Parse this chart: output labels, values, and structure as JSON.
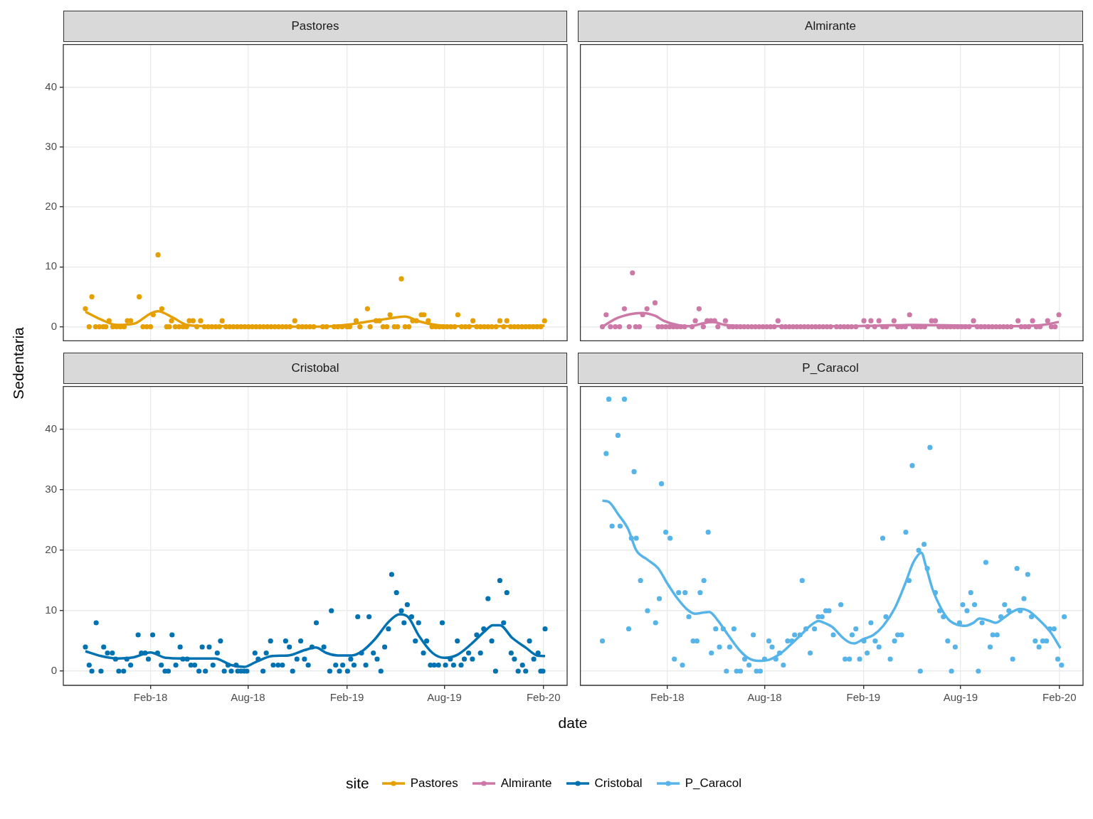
{
  "chart_data": [
    {
      "type": "scatter",
      "title": "Pastores",
      "ylabel": "Sedentaria",
      "legend": "bottom",
      "legend_title": "site",
      "grid": true,
      "tick_labels": "y",
      "xlim": [
        "2017-08-23",
        "2020-03-16"
      ],
      "xticks": [
        {
          "value": "2018-02-01",
          "label": null
        },
        {
          "value": "2018-08-01",
          "label": null
        },
        {
          "value": "2019-02-01",
          "label": null
        },
        {
          "value": "2019-08-01",
          "label": null
        },
        {
          "value": "2020-02-01",
          "label": null
        }
      ],
      "ylim": [
        -2.35,
        47.1
      ],
      "yticks": [
        0,
        10,
        20,
        30,
        40
      ],
      "series": [
        {
          "type": "scatter",
          "color": "#e69f00",
          "x": [
            "2017-10-03",
            "2017-10-10",
            "2017-10-15",
            "2017-10-22",
            "2017-10-29",
            "2017-11-05",
            "2017-11-10",
            "2017-11-16",
            "2017-11-23",
            "2017-11-30",
            "2017-12-07",
            "2017-12-14",
            "2017-12-20",
            "2017-12-26",
            "2018-01-11",
            "2018-01-18",
            "2018-01-25",
            "2018-02-01",
            "2018-02-06",
            "2018-02-15",
            "2018-02-22",
            "2018-03-03",
            "2018-03-08",
            "2018-03-12",
            "2018-03-19",
            "2018-03-26",
            "2018-04-02",
            "2018-04-09",
            "2018-04-14",
            "2018-04-21",
            "2018-04-28",
            "2018-05-05",
            "2018-05-12",
            "2018-05-19",
            "2018-05-26",
            "2018-06-02",
            "2018-06-09",
            "2018-06-14",
            "2018-06-21",
            "2018-06-28",
            "2018-07-05",
            "2018-07-12",
            "2018-07-19",
            "2018-07-26",
            "2018-08-02",
            "2018-08-09",
            "2018-08-16",
            "2018-08-23",
            "2018-08-30",
            "2018-09-06",
            "2018-09-13",
            "2018-09-20",
            "2018-09-27",
            "2018-10-04",
            "2018-10-11",
            "2018-10-18",
            "2018-10-27",
            "2018-11-03",
            "2018-11-10",
            "2018-11-17",
            "2018-11-24",
            "2018-12-01",
            "2018-12-18",
            "2018-12-25",
            "2019-01-08",
            "2019-01-15",
            "2019-01-23",
            "2019-02-01",
            "2019-02-06",
            "2019-02-18",
            "2019-02-25",
            "2019-03-11",
            "2019-03-16",
            "2019-03-27",
            "2019-04-02",
            "2019-04-09",
            "2019-04-16",
            "2019-04-22",
            "2019-04-30",
            "2019-05-06",
            "2019-05-13",
            "2019-05-20",
            "2019-05-27",
            "2019-06-03",
            "2019-06-10",
            "2019-06-19",
            "2019-06-24",
            "2019-07-02",
            "2019-07-09",
            "2019-07-16",
            "2019-07-23",
            "2019-07-30",
            "2019-08-06",
            "2019-08-13",
            "2019-08-20",
            "2019-08-26",
            "2019-09-02",
            "2019-09-09",
            "2019-09-16",
            "2019-09-23",
            "2019-09-30",
            "2019-10-07",
            "2019-10-14",
            "2019-10-21",
            "2019-10-28",
            "2019-11-05",
            "2019-11-12",
            "2019-11-19",
            "2019-11-25",
            "2019-12-02",
            "2019-12-09",
            "2019-12-16",
            "2019-12-23",
            "2019-12-30",
            "2020-01-06",
            "2020-01-13",
            "2020-01-20",
            "2020-01-27",
            "2020-02-03"
          ],
          "values": [
            3,
            0,
            5,
            0,
            0,
            0,
            0,
            1,
            0,
            0,
            0,
            0,
            1,
            1,
            5,
            0,
            0,
            0,
            2,
            12,
            3,
            0,
            0,
            1,
            0,
            0,
            0,
            0,
            1,
            1,
            0,
            1,
            0,
            0,
            0,
            0,
            0,
            1,
            0,
            0,
            0,
            0,
            0,
            0,
            0,
            0,
            0,
            0,
            0,
            0,
            0,
            0,
            0,
            0,
            0,
            0,
            1,
            0,
            0,
            0,
            0,
            0,
            0,
            0,
            0,
            0,
            0,
            0,
            0,
            1,
            0,
            3,
            0,
            1,
            1,
            0,
            0,
            2,
            0,
            0,
            8,
            0,
            0,
            1,
            1,
            2,
            2,
            1,
            0,
            0,
            0,
            0,
            0,
            0,
            0,
            2,
            0,
            0,
            0,
            1,
            0,
            0,
            0,
            0,
            0,
            0,
            1,
            0,
            1,
            0,
            0,
            0,
            0,
            0,
            0,
            0,
            0,
            0,
            1
          ]
        },
        {
          "type": "line",
          "name": "Pastores",
          "color": "#e69f00",
          "x": [
            "2017-10-03",
            "2017-11-01",
            "2017-12-01",
            "2018-01-01",
            "2018-02-01",
            "2018-02-15",
            "2018-03-15",
            "2018-04-10",
            "2018-05-15",
            "2018-07-01",
            "2018-09-01",
            "2018-11-01",
            "2018-12-15",
            "2019-01-15",
            "2019-02-15",
            "2019-03-15",
            "2019-04-15",
            "2019-05-20",
            "2019-06-15",
            "2019-07-15",
            "2019-08-15",
            "2019-10-01",
            "2019-12-01",
            "2020-02-03"
          ],
          "values": [
            2.5,
            1.2,
            0.3,
            0.5,
            2.2,
            2.6,
            1.5,
            0.3,
            0.1,
            0.1,
            0,
            0,
            0,
            0.2,
            0.5,
            0.9,
            1.3,
            1.7,
            0.9,
            0.3,
            0.1,
            0.1,
            0.1,
            0.2
          ]
        }
      ]
    },
    {
      "type": "scatter",
      "title": "Almirante",
      "legend": "bottom",
      "grid": true,
      "tick_labels": false,
      "xlim": [
        "2017-08-23",
        "2020-03-16"
      ],
      "xticks": [
        {
          "value": "2018-02-01",
          "label": null
        },
        {
          "value": "2018-08-01",
          "label": null
        },
        {
          "value": "2019-02-01",
          "label": null
        },
        {
          "value": "2019-08-01",
          "label": null
        },
        {
          "value": "2020-02-01",
          "label": null
        }
      ],
      "ylim": [
        -2.35,
        47.1
      ],
      "yticks": [
        0,
        10,
        20,
        30,
        40
      ],
      "series": [
        {
          "type": "scatter",
          "color": "#cc79a7",
          "x": [
            "2017-10-03",
            "2017-10-10",
            "2017-10-18",
            "2017-10-27",
            "2017-11-04",
            "2017-11-13",
            "2017-11-22",
            "2017-11-28",
            "2017-12-04",
            "2017-12-11",
            "2017-12-17",
            "2017-12-25",
            "2018-01-09",
            "2018-01-15",
            "2018-01-22",
            "2018-01-29",
            "2018-02-05",
            "2018-02-12",
            "2018-02-19",
            "2018-02-26",
            "2018-03-05",
            "2018-03-19",
            "2018-03-25",
            "2018-04-01",
            "2018-04-09",
            "2018-04-16",
            "2018-04-23",
            "2018-04-30",
            "2018-05-06",
            "2018-05-20",
            "2018-05-27",
            "2018-06-03",
            "2018-06-10",
            "2018-06-17",
            "2018-06-24",
            "2018-07-01",
            "2018-07-08",
            "2018-07-15",
            "2018-07-22",
            "2018-07-29",
            "2018-08-05",
            "2018-08-12",
            "2018-08-19",
            "2018-08-26",
            "2018-09-02",
            "2018-09-09",
            "2018-09-16",
            "2018-09-23",
            "2018-09-30",
            "2018-10-07",
            "2018-10-14",
            "2018-10-21",
            "2018-10-28",
            "2018-11-04",
            "2018-11-11",
            "2018-11-18",
            "2018-11-25",
            "2018-12-02",
            "2018-12-13",
            "2018-12-20",
            "2018-12-27",
            "2019-01-03",
            "2019-01-10",
            "2019-01-18",
            "2019-02-02",
            "2019-02-09",
            "2019-02-15",
            "2019-02-22",
            "2019-03-02",
            "2019-03-09",
            "2019-03-16",
            "2019-03-30",
            "2019-04-06",
            "2019-04-13",
            "2019-04-20",
            "2019-04-28",
            "2019-05-05",
            "2019-05-12",
            "2019-05-19",
            "2019-05-26",
            "2019-06-08",
            "2019-06-15",
            "2019-06-22",
            "2019-06-29",
            "2019-07-06",
            "2019-07-13",
            "2019-07-20",
            "2019-07-27",
            "2019-08-03",
            "2019-08-10",
            "2019-08-17",
            "2019-08-25",
            "2019-09-01",
            "2019-09-08",
            "2019-09-15",
            "2019-09-22",
            "2019-09-29",
            "2019-10-06",
            "2019-10-13",
            "2019-10-20",
            "2019-10-27",
            "2019-11-03",
            "2019-11-16",
            "2019-11-22",
            "2019-11-29",
            "2019-12-06",
            "2019-12-13",
            "2019-12-20",
            "2019-12-27",
            "2020-01-10",
            "2020-01-17",
            "2020-01-24",
            "2020-01-31"
          ],
          "values": [
            0,
            2,
            0,
            0,
            0,
            3,
            0,
            9,
            0,
            0,
            2,
            3,
            4,
            0,
            0,
            0,
            0,
            0,
            0,
            0,
            0,
            0,
            1,
            3,
            0,
            1,
            1,
            1,
            0,
            1,
            0,
            0,
            0,
            0,
            0,
            0,
            0,
            0,
            0,
            0,
            0,
            0,
            0,
            1,
            0,
            0,
            0,
            0,
            0,
            0,
            0,
            0,
            0,
            0,
            0,
            0,
            0,
            0,
            0,
            0,
            0,
            0,
            0,
            0,
            1,
            0,
            1,
            0,
            1,
            0,
            0,
            1,
            0,
            0,
            0,
            2,
            0,
            0,
            0,
            0,
            1,
            1,
            0,
            0,
            0,
            0,
            0,
            0,
            0,
            0,
            0,
            1,
            0,
            0,
            0,
            0,
            0,
            0,
            0,
            0,
            0,
            0,
            1,
            0,
            0,
            0,
            1,
            0,
            0,
            1,
            0,
            0,
            2
          ]
        },
        {
          "type": "line",
          "name": "Almirante",
          "color": "#cc79a7",
          "x": [
            "2017-10-03",
            "2017-11-01",
            "2017-12-15",
            "2018-01-10",
            "2018-01-25",
            "2018-02-25",
            "2018-03-15",
            "2018-04-10",
            "2018-04-25",
            "2018-05-20",
            "2018-07-01",
            "2018-10-01",
            "2019-01-01",
            "2019-03-01",
            "2019-05-01",
            "2019-08-01",
            "2019-11-01",
            "2020-01-01",
            "2020-01-31"
          ],
          "values": [
            0,
            1.5,
            2.3,
            1.8,
            1,
            0.2,
            0.1,
            0.6,
            0.8,
            0.3,
            0.1,
            0.1,
            0.1,
            0.2,
            0.3,
            0.2,
            0.1,
            0.3,
            0.8
          ]
        }
      ]
    },
    {
      "type": "scatter",
      "title": "Cristobal",
      "xlabel": "date",
      "legend": "bottom",
      "grid": true,
      "xlim": [
        "2017-08-23",
        "2020-03-16"
      ],
      "xticks": [
        {
          "value": "2018-02-01",
          "label": "Feb-18"
        },
        {
          "value": "2018-08-01",
          "label": "Aug-18"
        },
        {
          "value": "2019-02-01",
          "label": "Feb-19"
        },
        {
          "value": "2019-08-01",
          "label": "Aug-19"
        },
        {
          "value": "2020-02-01",
          "label": "Feb-20"
        }
      ],
      "ylim": [
        -2.35,
        47.1
      ],
      "yticks": [
        0,
        10,
        20,
        30,
        40
      ],
      "series": [
        {
          "type": "scatter",
          "color": "#0072b2",
          "x": [
            "2017-10-03",
            "2017-10-10",
            "2017-10-15",
            "2017-10-23",
            "2017-11-01",
            "2017-11-06",
            "2017-11-13",
            "2017-11-22",
            "2017-11-28",
            "2017-12-04",
            "2017-12-13",
            "2017-12-19",
            "2017-12-26",
            "2018-01-09",
            "2018-01-15",
            "2018-01-22",
            "2018-01-28",
            "2018-02-05",
            "2018-02-14",
            "2018-02-21",
            "2018-02-28",
            "2018-03-06",
            "2018-03-13",
            "2018-03-20",
            "2018-03-28",
            "2018-04-02",
            "2018-04-10",
            "2018-04-17",
            "2018-04-24",
            "2018-05-02",
            "2018-05-08",
            "2018-05-14",
            "2018-05-21",
            "2018-05-28",
            "2018-06-05",
            "2018-06-11",
            "2018-06-18",
            "2018-06-25",
            "2018-07-01",
            "2018-07-10",
            "2018-07-13",
            "2018-07-19",
            "2018-07-25",
            "2018-07-30",
            "2018-08-14",
            "2018-08-20",
            "2018-08-29",
            "2018-09-04",
            "2018-09-12",
            "2018-09-17",
            "2018-09-26",
            "2018-10-04",
            "2018-10-10",
            "2018-10-17",
            "2018-10-23",
            "2018-10-31",
            "2018-11-07",
            "2018-11-14",
            "2018-11-21",
            "2018-11-28",
            "2018-12-06",
            "2018-12-20",
            "2018-12-31",
            "2019-01-03",
            "2019-01-11",
            "2019-01-18",
            "2019-01-24",
            "2019-02-02",
            "2019-02-08",
            "2019-02-14",
            "2019-02-21",
            "2019-02-28",
            "2019-03-08",
            "2019-03-14",
            "2019-03-22",
            "2019-03-29",
            "2019-04-05",
            "2019-04-12",
            "2019-04-19",
            "2019-04-25",
            "2019-05-04",
            "2019-05-13",
            "2019-05-18",
            "2019-05-24",
            "2019-06-01",
            "2019-06-08",
            "2019-06-14",
            "2019-06-23",
            "2019-06-29",
            "2019-07-06",
            "2019-07-13",
            "2019-07-21",
            "2019-07-28",
            "2019-08-03",
            "2019-08-12",
            "2019-08-18",
            "2019-08-25",
            "2019-09-01",
            "2019-09-07",
            "2019-09-15",
            "2019-09-22",
            "2019-09-30",
            "2019-10-07",
            "2019-10-13",
            "2019-10-21",
            "2019-10-28",
            "2019-11-04",
            "2019-11-12",
            "2019-11-19",
            "2019-11-25",
            "2019-12-03",
            "2019-12-09",
            "2019-12-16",
            "2019-12-24",
            "2019-12-30",
            "2020-01-06",
            "2020-01-14",
            "2020-01-22",
            "2020-01-27",
            "2020-01-31",
            "2020-02-04"
          ],
          "values": [
            4,
            1,
            0,
            8,
            0,
            4,
            3,
            3,
            2,
            0,
            0,
            2,
            1,
            6,
            3,
            3,
            2,
            6,
            3,
            1,
            0,
            0,
            6,
            1,
            4,
            2,
            2,
            1,
            1,
            0,
            4,
            0,
            4,
            1,
            3,
            5,
            0,
            1,
            0,
            1,
            0,
            0,
            0,
            0,
            3,
            2,
            0,
            3,
            5,
            1,
            1,
            1,
            5,
            4,
            0,
            2,
            5,
            2,
            1,
            4,
            8,
            4,
            0,
            10,
            1,
            0,
            1,
            0,
            2,
            1,
            9,
            3,
            1,
            9,
            3,
            2,
            0,
            4,
            7,
            16,
            13,
            10,
            8,
            11,
            9,
            5,
            8,
            3,
            5,
            1,
            1,
            1,
            8,
            1,
            2,
            1,
            5,
            1,
            2,
            3,
            2,
            6,
            3,
            7,
            12,
            5,
            0,
            15,
            8,
            13,
            3,
            2,
            0,
            1,
            0,
            5,
            2,
            3,
            0,
            0,
            7
          ]
        },
        {
          "type": "line",
          "name": "Cristobal",
          "color": "#0072b2",
          "x": [
            "2017-10-03",
            "2017-11-01",
            "2017-12-01",
            "2018-01-01",
            "2018-02-01",
            "2018-03-01",
            "2018-04-01",
            "2018-05-01",
            "2018-06-01",
            "2018-07-01",
            "2018-07-25",
            "2018-08-15",
            "2018-09-15",
            "2018-10-15",
            "2018-11-15",
            "2018-12-05",
            "2018-12-25",
            "2019-01-15",
            "2019-02-10",
            "2019-03-01",
            "2019-03-25",
            "2019-04-20",
            "2019-05-10",
            "2019-05-25",
            "2019-06-15",
            "2019-07-10",
            "2019-08-01",
            "2019-08-25",
            "2019-09-20",
            "2019-10-15",
            "2019-10-30",
            "2019-11-12",
            "2019-12-05",
            "2019-12-30",
            "2020-01-20",
            "2020-02-04"
          ],
          "values": [
            3.3,
            2.5,
            2.1,
            2.3,
            3.1,
            2.2,
            2.1,
            2.1,
            2.1,
            1,
            0.7,
            1.5,
            2.5,
            2.6,
            3.5,
            3.9,
            3,
            2.6,
            2.6,
            3.3,
            5.3,
            8.2,
            9.4,
            9,
            5.8,
            3,
            2.2,
            2.7,
            4.5,
            6.6,
            7.6,
            7.6,
            5.5,
            3.9,
            2.6,
            2.5
          ]
        }
      ]
    },
    {
      "type": "scatter",
      "title": "P_Caracol",
      "legend": "bottom",
      "grid": true,
      "tick_labels": "x",
      "xlim": [
        "2017-08-23",
        "2020-03-16"
      ],
      "xticks": [
        {
          "value": "2018-02-01",
          "label": "Feb-18"
        },
        {
          "value": "2018-08-01",
          "label": "Aug-18"
        },
        {
          "value": "2019-02-01",
          "label": "Feb-19"
        },
        {
          "value": "2019-08-01",
          "label": "Aug-19"
        },
        {
          "value": "2020-02-01",
          "label": "Feb-20"
        }
      ],
      "ylim": [
        -2.35,
        47.1
      ],
      "yticks": [
        0,
        10,
        20,
        30,
        40
      ],
      "series": [
        {
          "type": "scatter",
          "color": "#56b4e9",
          "x": [
            "2017-10-03",
            "2017-10-10",
            "2017-10-15",
            "2017-10-21",
            "2017-11-01",
            "2017-11-05",
            "2017-11-13",
            "2017-11-21",
            "2017-11-26",
            "2017-12-01",
            "2017-12-05",
            "2017-12-13",
            "2017-12-26",
            "2018-01-10",
            "2018-01-17",
            "2018-01-21",
            "2018-01-29",
            "2018-02-06",
            "2018-02-14",
            "2018-02-22",
            "2018-03-01",
            "2018-03-06",
            "2018-03-13",
            "2018-03-21",
            "2018-03-28",
            "2018-04-03",
            "2018-04-10",
            "2018-04-18",
            "2018-04-24",
            "2018-05-02",
            "2018-05-09",
            "2018-05-16",
            "2018-05-22",
            "2018-05-28",
            "2018-06-05",
            "2018-06-10",
            "2018-06-17",
            "2018-06-25",
            "2018-07-03",
            "2018-07-11",
            "2018-07-17",
            "2018-07-24",
            "2018-08-01",
            "2018-08-09",
            "2018-08-15",
            "2018-08-22",
            "2018-08-29",
            "2018-09-05",
            "2018-09-13",
            "2018-09-21",
            "2018-09-26",
            "2018-10-06",
            "2018-10-10",
            "2018-10-17",
            "2018-10-25",
            "2018-11-02",
            "2018-11-09",
            "2018-11-16",
            "2018-11-23",
            "2018-11-29",
            "2018-12-07",
            "2018-12-21",
            "2018-12-29",
            "2019-01-06",
            "2019-01-11",
            "2019-01-18",
            "2019-01-25",
            "2019-02-02",
            "2019-02-08",
            "2019-02-15",
            "2019-02-23",
            "2019-03-02",
            "2019-03-09",
            "2019-03-15",
            "2019-03-23",
            "2019-03-31",
            "2019-04-06",
            "2019-04-13",
            "2019-04-21",
            "2019-04-27",
            "2019-05-03",
            "2019-05-15",
            "2019-05-18",
            "2019-05-25",
            "2019-05-31",
            "2019-06-05",
            "2019-06-15",
            "2019-06-23",
            "2019-06-30",
            "2019-07-08",
            "2019-07-15",
            "2019-07-22",
            "2019-07-30",
            "2019-08-05",
            "2019-08-13",
            "2019-08-20",
            "2019-08-27",
            "2019-09-03",
            "2019-09-10",
            "2019-09-17",
            "2019-09-25",
            "2019-09-30",
            "2019-10-08",
            "2019-10-15",
            "2019-10-22",
            "2019-10-30",
            "2019-11-06",
            "2019-11-14",
            "2019-11-20",
            "2019-11-27",
            "2019-12-04",
            "2019-12-11",
            "2019-12-18",
            "2019-12-25",
            "2020-01-01",
            "2020-01-08",
            "2020-01-14",
            "2020-01-22",
            "2020-01-29",
            "2020-02-05",
            "2020-02-10"
          ],
          "values": [
            5,
            36,
            45,
            24,
            39,
            24,
            45,
            7,
            22,
            33,
            22,
            15,
            10,
            8,
            12,
            31,
            23,
            22,
            2,
            13,
            1,
            13,
            9,
            5,
            5,
            13,
            15,
            23,
            3,
            7,
            4,
            7,
            0,
            4,
            7,
            0,
            0,
            2,
            1,
            6,
            0,
            0,
            2,
            5,
            4,
            2,
            3,
            1,
            5,
            5,
            6,
            6,
            15,
            7,
            3,
            7,
            9,
            9,
            10,
            10,
            6,
            11,
            2,
            2,
            6,
            7,
            2,
            5,
            3,
            8,
            5,
            4,
            22,
            9,
            2,
            5,
            6,
            6,
            23,
            15,
            34,
            20,
            0,
            21,
            17,
            37,
            13,
            10,
            9,
            5,
            0,
            4,
            8,
            11,
            10,
            13,
            11,
            0,
            8,
            18,
            4,
            6,
            6,
            9,
            11,
            10,
            2,
            17,
            10,
            12,
            16,
            9,
            5,
            4,
            5,
            5,
            7,
            7,
            2,
            1,
            9
          ]
        },
        {
          "type": "line",
          "name": "P_Caracol",
          "color": "#56b4e9",
          "x": [
            "2017-10-03",
            "2017-10-15",
            "2017-11-01",
            "2017-11-20",
            "2017-12-05",
            "2017-12-25",
            "2018-01-15",
            "2018-02-01",
            "2018-02-20",
            "2018-03-10",
            "2018-03-25",
            "2018-04-10",
            "2018-04-20",
            "2018-05-05",
            "2018-05-25",
            "2018-06-15",
            "2018-07-01",
            "2018-07-20",
            "2018-08-10",
            "2018-09-01",
            "2018-09-20",
            "2018-10-10",
            "2018-10-25",
            "2018-11-10",
            "2018-11-20",
            "2018-12-05",
            "2018-12-25",
            "2019-01-05",
            "2019-01-15",
            "2019-02-01",
            "2019-02-20",
            "2019-03-10",
            "2019-04-01",
            "2019-04-20",
            "2019-05-05",
            "2019-05-20",
            "2019-05-28",
            "2019-06-10",
            "2019-06-25",
            "2019-07-10",
            "2019-07-25",
            "2019-08-10",
            "2019-08-25",
            "2019-09-05",
            "2019-09-25",
            "2019-10-05",
            "2019-10-20",
            "2019-11-05",
            "2019-11-20",
            "2019-12-05",
            "2019-12-25",
            "2020-01-15",
            "2020-02-03"
          ],
          "values": [
            28.2,
            28,
            26,
            23.5,
            20,
            18.5,
            17,
            14.5,
            12,
            10.2,
            9.5,
            9.7,
            9.8,
            8.5,
            6,
            3.5,
            2.2,
            1.7,
            1.9,
            3,
            4.5,
            6.2,
            7.5,
            8.3,
            8,
            7.3,
            5.5,
            4.8,
            4.6,
            5.3,
            6,
            7.5,
            10.5,
            14.5,
            18,
            19.6,
            17.5,
            13.5,
            10.5,
            8.5,
            7.7,
            7.5,
            8,
            8.7,
            8.3,
            8,
            8.8,
            9.8,
            10.3,
            10,
            8.5,
            6.5,
            3.8
          ]
        }
      ]
    }
  ]
}
